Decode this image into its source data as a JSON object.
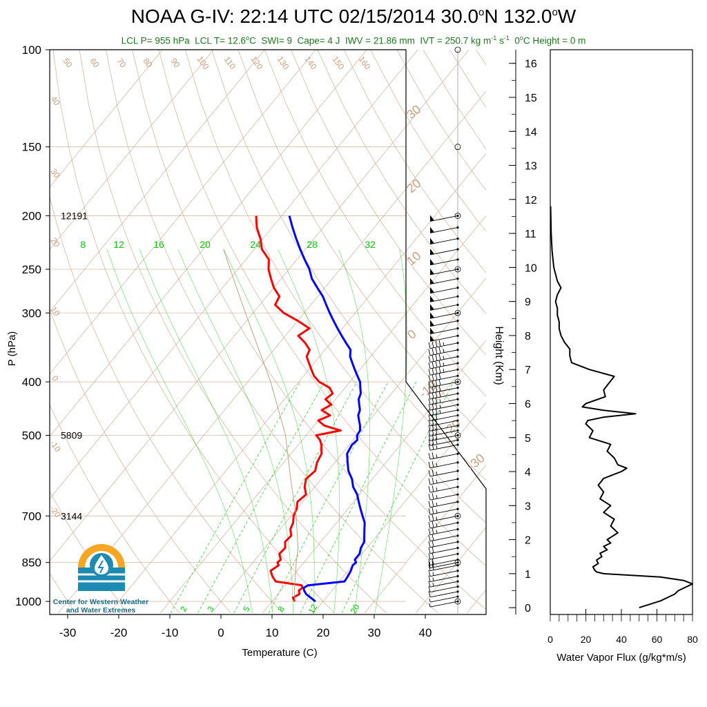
{
  "title": {
    "prefix": "NOAA G-IV: 22:14 UTC 02/15/2014  30.0",
    "deg1": "o",
    "mid": "N 132.0",
    "deg2": "o",
    "suffix": "W"
  },
  "subtitle": {
    "lcl_p": "LCL P= 955 hPa",
    "lcl_t": "LCL T= 12.6",
    "lcl_t_deg": "o",
    "lcl_t_unit": "C",
    "swi": "SWI= 9",
    "cape": "Cape= 4 J",
    "iwv": "IWV = 21.86 mm",
    "ivt": "IVT = 250.7 kg m",
    "ivt_exp1": "-1",
    "ivt_s": " s",
    "ivt_exp2": "-1",
    "zero_c_a": "0",
    "zero_c_deg": "o",
    "zero_c_b": "C Height = 0 m"
  },
  "logo": {
    "line1": "Center for Western Weather",
    "line2": "and Water Extremes"
  },
  "colors": {
    "temperature": "#ff0000",
    "dewpoint": "#0000ff",
    "mixing_ratio": "#00cc00",
    "adiabat": "#c8a080",
    "parcel": "#c0a080",
    "flux": "#000000"
  },
  "chart_data": [
    {
      "type": "line",
      "chart": "skew-T log-P sounding",
      "xlabel": "Temperature (C)",
      "ylabel": "P (hPa)",
      "xlim": [
        -35,
        50
      ],
      "ylim": [
        1050,
        100
      ],
      "x_ticks": [
        -30,
        -20,
        -10,
        0,
        10,
        20,
        30,
        40
      ],
      "y_ticks": [
        100,
        150,
        200,
        250,
        300,
        400,
        500,
        700,
        850,
        1000
      ],
      "height_labels": [
        {
          "p": 200,
          "label": "12191"
        },
        {
          "p": 500,
          "label": "5809"
        },
        {
          "p": 700,
          "label": "3144"
        }
      ],
      "series": [
        {
          "key": "temperature",
          "p": [
            1000,
            985,
            970,
            955,
            945,
            935,
            920,
            900,
            880,
            860,
            850,
            840,
            820,
            800,
            780,
            760,
            740,
            720,
            700,
            680,
            660,
            640,
            620,
            600,
            580,
            560,
            540,
            520,
            510,
            500,
            490,
            480,
            470,
            460,
            450,
            440,
            430,
            420,
            410,
            400,
            390,
            380,
            370,
            360,
            350,
            340,
            330,
            320,
            310,
            300,
            290,
            280,
            270,
            260,
            250,
            240,
            230,
            220,
            210,
            200
          ],
          "t": [
            14.5,
            13.5,
            14.2,
            13.5,
            13.8,
            13.2,
            7.5,
            6.0,
            4.8,
            5.5,
            4.8,
            5.0,
            3.8,
            4.0,
            3.0,
            3.2,
            2.0,
            1.5,
            0.5,
            0.0,
            -1.0,
            -0.5,
            -2.0,
            -3.0,
            -2.5,
            -3.5,
            -4.0,
            -5.5,
            -6.5,
            -8.0,
            -4.0,
            -8.0,
            -10.0,
            -8.5,
            -11.0,
            -10.0,
            -12.0,
            -11.5,
            -13.0,
            -16.0,
            -18.0,
            -19.5,
            -21.0,
            -22.5,
            -23.0,
            -25.0,
            -27.5,
            -26.5,
            -30.0,
            -34.0,
            -37.0,
            -37.5,
            -40.0,
            -42.0,
            -44.0,
            -45.5,
            -48.5,
            -50.5,
            -53.0,
            -55.0
          ]
        },
        {
          "key": "dewpoint",
          "p": [
            1000,
            985,
            970,
            955,
            945,
            935,
            920,
            900,
            880,
            860,
            850,
            840,
            820,
            800,
            780,
            760,
            740,
            720,
            700,
            680,
            660,
            640,
            620,
            600,
            580,
            560,
            540,
            520,
            510,
            500,
            490,
            480,
            470,
            460,
            450,
            440,
            430,
            420,
            410,
            400,
            390,
            380,
            370,
            360,
            350,
            340,
            330,
            320,
            310,
            300,
            290,
            280,
            270,
            260,
            250,
            240,
            230,
            220,
            210,
            200
          ],
          "t": [
            18.5,
            17.0,
            15.5,
            14.5,
            14.0,
            14.5,
            21.0,
            20.8,
            20.5,
            20.0,
            20.2,
            19.5,
            19.5,
            18.8,
            18.5,
            17.5,
            16.5,
            15.5,
            14.0,
            12.5,
            11.0,
            9.5,
            7.5,
            6.0,
            4.0,
            2.5,
            1.0,
            0.5,
            0.8,
            0.0,
            -0.2,
            -1.0,
            -2.0,
            -3.0,
            -3.5,
            -4.5,
            -5.5,
            -6.0,
            -7.0,
            -8.0,
            -9.5,
            -11.0,
            -12.5,
            -14.0,
            -15.0,
            -17.0,
            -19.0,
            -21.0,
            -23.0,
            -25.0,
            -27.0,
            -29.0,
            -31.5,
            -34.0,
            -36.0,
            -38.5,
            -41.0,
            -43.5,
            -46.0,
            -48.5
          ]
        },
        {
          "key": "parcel",
          "p": [
            1000,
            955,
            900,
            850,
            800,
            700,
            600,
            500,
            400,
            300,
            250,
            230
          ],
          "t": [
            14.5,
            12.6,
            10.5,
            8.5,
            6.5,
            1.0,
            -6.0,
            -14.0,
            -25.5,
            -41.5,
            -51.5,
            -56.0
          ]
        }
      ],
      "mixing_ratio_labels": [
        "8",
        "12",
        "16",
        "20",
        "24",
        "28",
        "32"
      ],
      "mixing_ratio_lower_labels": [
        "2",
        "3",
        "5",
        "8",
        "12",
        "20"
      ],
      "adiabat_top_labels": [
        "50",
        "60",
        "70",
        "80",
        "90",
        "100",
        "110",
        "120",
        "130",
        "140",
        "150",
        "160"
      ],
      "adiabat_left_labels": [
        "40",
        "30",
        "20",
        "10",
        "0",
        "-10",
        "-20"
      ],
      "isotherm_right_labels": [
        "30",
        "20",
        "10",
        "0",
        "-10",
        "-20",
        "-30"
      ]
    },
    {
      "type": "line",
      "chart": "water vapor flux profile",
      "xlabel": "Water Vapor Flux (g/kg*m/s)",
      "ylabel": "Height (Km)",
      "xlim": [
        0,
        80
      ],
      "ylim": [
        -0.2,
        16.4
      ],
      "x_ticks": [
        0,
        20,
        40,
        60,
        80
      ],
      "y_ticks": [
        0,
        1,
        2,
        3,
        4,
        5,
        6,
        7,
        8,
        9,
        10,
        11,
        12,
        13,
        14,
        15,
        16
      ],
      "series": [
        {
          "key": "flux",
          "height_km": [
            0.0,
            0.1,
            0.2,
            0.3,
            0.4,
            0.5,
            0.6,
            0.7,
            0.8,
            0.9,
            1.0,
            1.05,
            1.1,
            1.2,
            1.3,
            1.4,
            1.5,
            1.6,
            1.7,
            1.8,
            1.9,
            2.0,
            2.2,
            2.4,
            2.6,
            2.8,
            3.0,
            3.2,
            3.4,
            3.6,
            3.8,
            4.0,
            4.1,
            4.2,
            4.4,
            4.6,
            4.8,
            5.0,
            5.2,
            5.4,
            5.5,
            5.6,
            5.7,
            5.8,
            5.9,
            6.0,
            6.2,
            6.4,
            6.6,
            6.8,
            7.0,
            7.2,
            7.4,
            7.6,
            7.8,
            8.0,
            8.2,
            8.4,
            8.6,
            8.8,
            9.0,
            9.2,
            9.4,
            9.6,
            9.8,
            10.0,
            10.5,
            11.0,
            11.5,
            11.8
          ],
          "flux": [
            50,
            56,
            62,
            66,
            70,
            72,
            76,
            80,
            75,
            62,
            30,
            26,
            25,
            24,
            27,
            26,
            29,
            28,
            32,
            30,
            34,
            32,
            38,
            34,
            36,
            30,
            34,
            28,
            30,
            27,
            30,
            40,
            43,
            38,
            36,
            32,
            34,
            22,
            24,
            20,
            21,
            30,
            48,
            30,
            18,
            20,
            31,
            30,
            33,
            36,
            22,
            12,
            11,
            11,
            8,
            6,
            5,
            5,
            4,
            4,
            3,
            4,
            6,
            4,
            3,
            2,
            1,
            0.5,
            0.3,
            0.2
          ]
        }
      ]
    }
  ],
  "wind_barbs": {
    "p": [
      1000,
      980,
      960,
      940,
      920,
      900,
      880,
      860,
      850,
      840,
      820,
      800,
      780,
      760,
      740,
      720,
      700,
      680,
      660,
      640,
      620,
      600,
      580,
      560,
      540,
      520,
      510,
      500,
      490,
      480,
      470,
      460,
      450,
      440,
      430,
      420,
      410,
      400,
      390,
      380,
      370,
      360,
      350,
      340,
      330,
      320,
      310,
      300,
      290,
      280,
      270,
      260,
      250,
      240,
      230,
      220,
      210,
      200
    ],
    "speed_kt": [
      5,
      5,
      10,
      10,
      15,
      15,
      15,
      20,
      20,
      20,
      20,
      20,
      20,
      20,
      25,
      25,
      25,
      25,
      25,
      25,
      25,
      25,
      25,
      25,
      25,
      25,
      30,
      30,
      30,
      30,
      30,
      30,
      35,
      35,
      35,
      40,
      40,
      40,
      40,
      45,
      45,
      45,
      45,
      45,
      50,
      50,
      50,
      50,
      50,
      50,
      50,
      50,
      50,
      50,
      50,
      50,
      50,
      50
    ]
  }
}
